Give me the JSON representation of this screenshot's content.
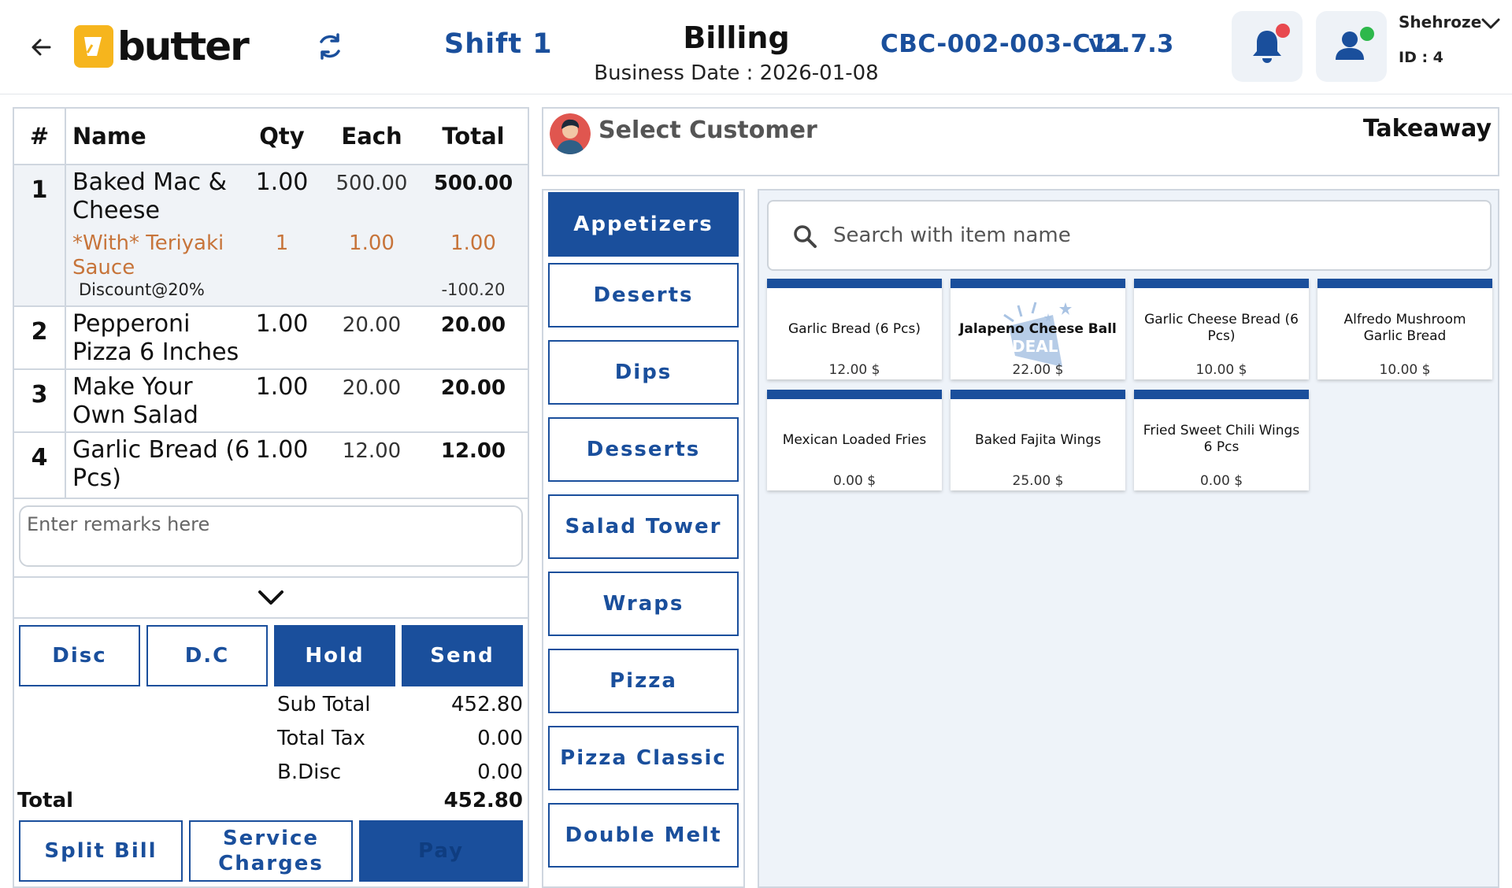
{
  "header": {
    "logo_text": "butter",
    "shift": "Shift 1",
    "title": "Billing",
    "business_date": "Business Date : 2026-01-08",
    "terminal": "CBC-002-003-C11",
    "version": "v2.7.3",
    "user_name": "Shehroze",
    "user_id": "ID : 4",
    "colors": {
      "accent": "#1a4f9c",
      "notification_dot": "#e8494f",
      "online_dot": "#2db84b",
      "brand": "#f6b51d"
    }
  },
  "order": {
    "columns": {
      "hash": "#",
      "name": "Name",
      "qty": "Qty",
      "each": "Each",
      "total": "Total"
    },
    "rows": [
      {
        "num": "1",
        "name": "Baked Mac & Cheese",
        "qty": "1.00",
        "each": "500.00",
        "total": "500.00",
        "modifier": {
          "name": "*With* Teriyaki Sauce",
          "qty": "1",
          "each": "1.00",
          "total": "1.00"
        },
        "discount": {
          "label": "Discount@20%",
          "value": "-100.20"
        }
      },
      {
        "num": "2",
        "name": "Pepperoni Pizza 6 Inches",
        "qty": "1.00",
        "each": "20.00",
        "total": "20.00"
      },
      {
        "num": "3",
        "name": "Make Your Own Salad",
        "qty": "1.00",
        "each": "20.00",
        "total": "20.00"
      },
      {
        "num": "4",
        "name": "Garlic Bread (6 Pcs)",
        "qty": "1.00",
        "each": "12.00",
        "total": "12.00"
      }
    ],
    "remarks_placeholder": "Enter remarks here",
    "buttons": {
      "disc": "Disc",
      "dc": "D.C",
      "hold": "Hold",
      "send": "Send",
      "split_bill": "Split Bill",
      "service_charges": "Service Charges",
      "pay": "Pay"
    },
    "summary": {
      "sub_total_label": "Sub Total",
      "sub_total": "452.80",
      "total_tax_label": "Total Tax",
      "total_tax": "0.00",
      "bdisc_label": "B.Disc",
      "bdisc": "0.00",
      "total_label": "Total",
      "total": "452.80"
    }
  },
  "customer": {
    "select_label": "Select Customer",
    "order_type": "Takeaway"
  },
  "categories": [
    {
      "label": "Appetizers",
      "active": true
    },
    {
      "label": "Deserts",
      "active": false
    },
    {
      "label": "Dips",
      "active": false
    },
    {
      "label": "Desserts",
      "active": false
    },
    {
      "label": "Salad Tower",
      "active": false
    },
    {
      "label": "Wraps",
      "active": false
    },
    {
      "label": "Pizza",
      "active": false
    },
    {
      "label": "Pizza Classic",
      "active": false
    },
    {
      "label": "Double Melt",
      "active": false
    }
  ],
  "search": {
    "placeholder": "Search with item name"
  },
  "items": [
    {
      "name": "Garlic Bread (6 Pcs)",
      "price": "12.00 $"
    },
    {
      "name": "Jalapeno Cheese Ball",
      "price": "22.00 $",
      "badge": "DEAL"
    },
    {
      "name": "Garlic Cheese Bread (6 Pcs)",
      "price": "10.00 $"
    },
    {
      "name": "Alfredo Mushroom Garlic Bread",
      "price": "10.00 $"
    },
    {
      "name": "Mexican Loaded Fries",
      "price": "0.00 $"
    },
    {
      "name": "Baked Fajita Wings",
      "price": "25.00 $"
    },
    {
      "name": "Fried Sweet Chili Wings 6 Pcs",
      "price": "0.00 $"
    }
  ]
}
